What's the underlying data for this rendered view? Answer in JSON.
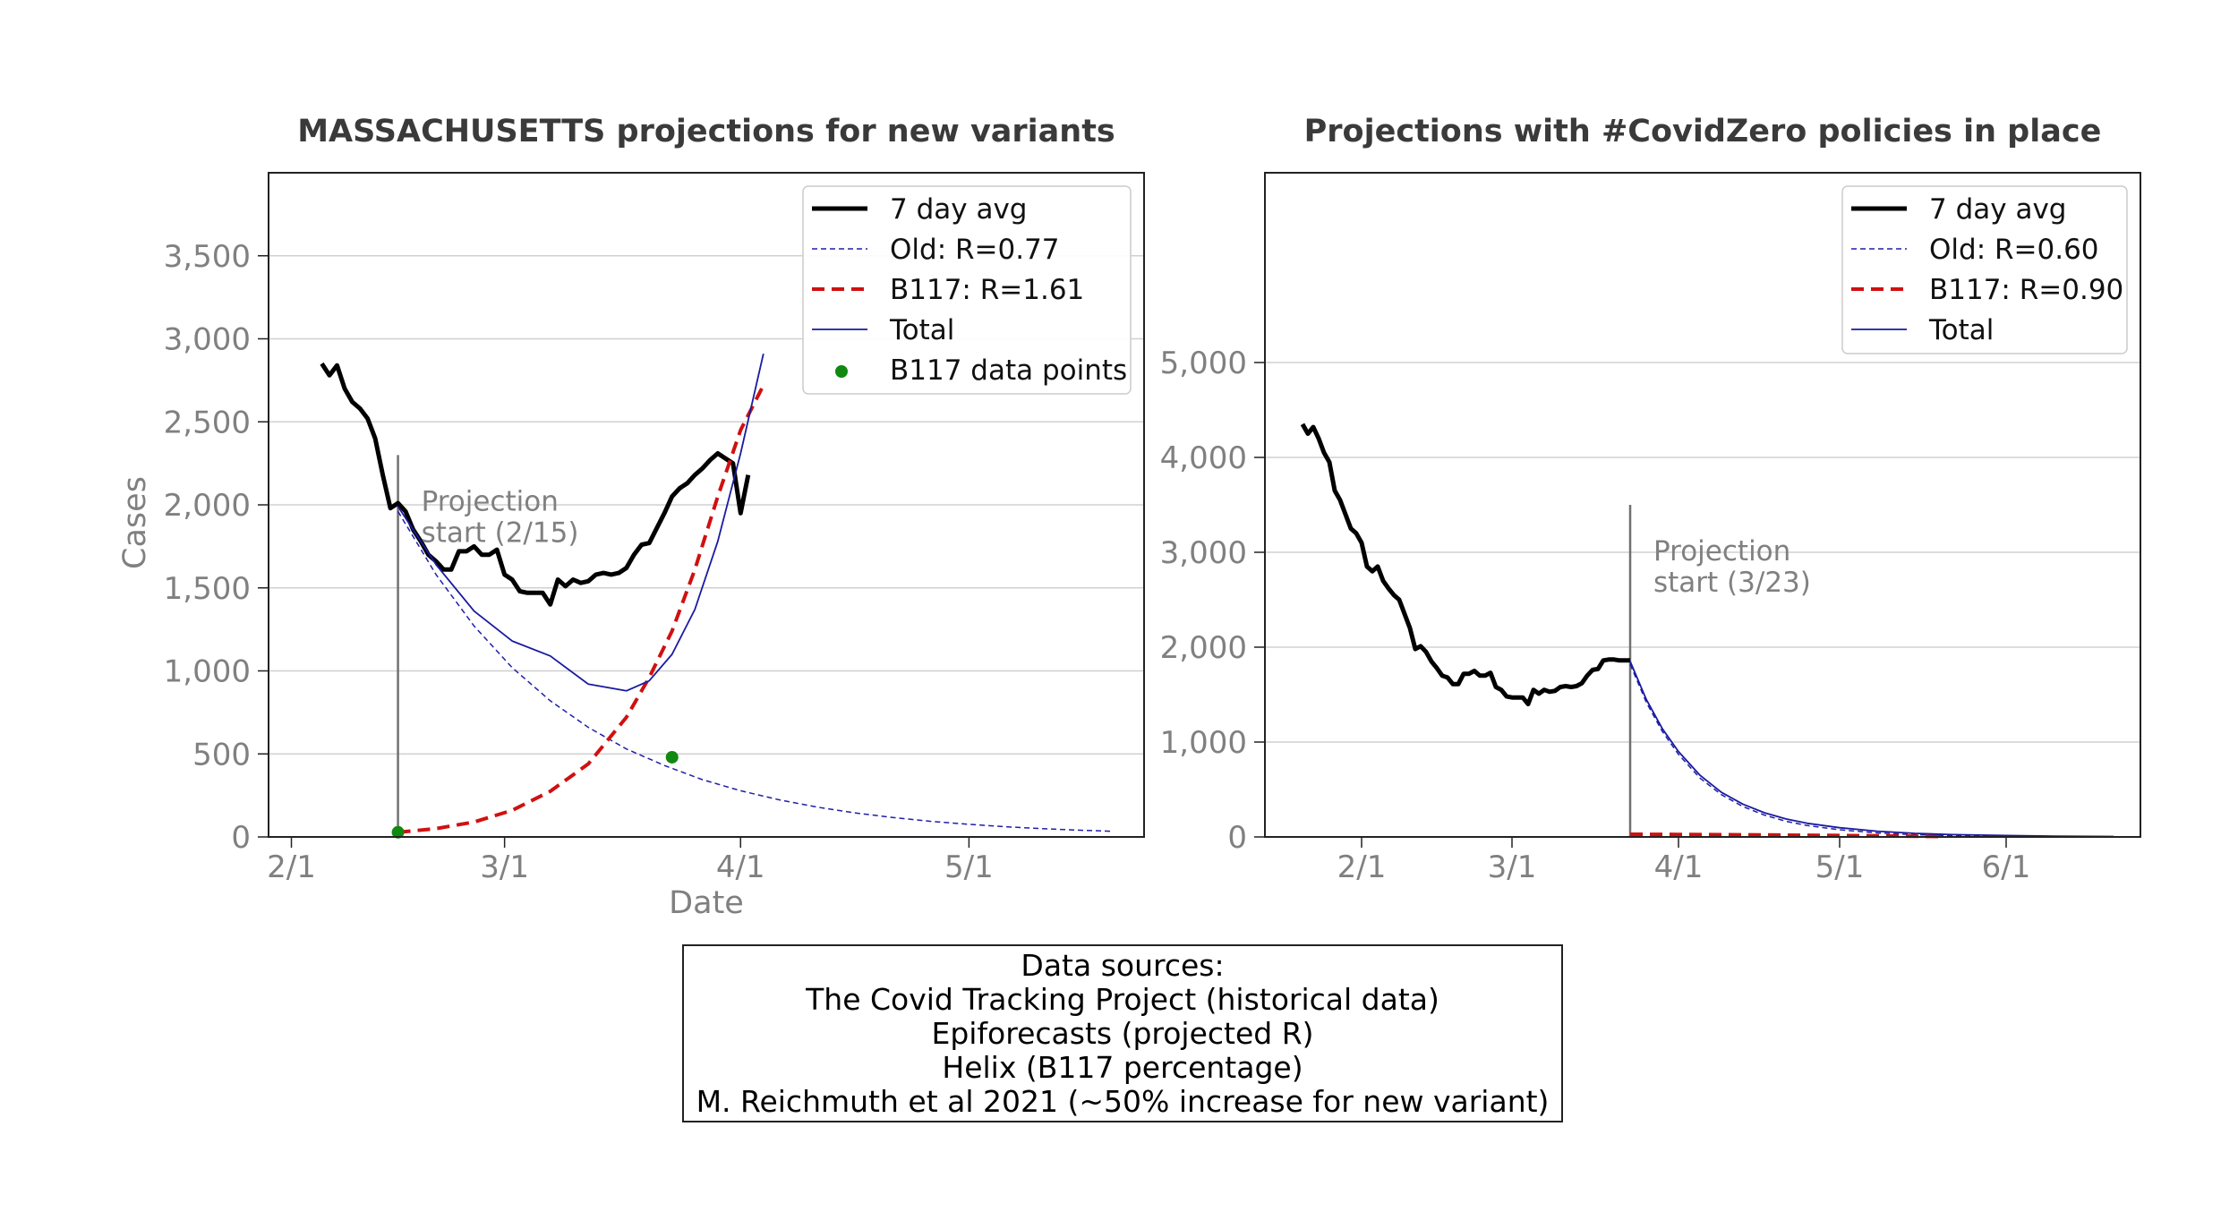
{
  "colors": {
    "avg": "#000000",
    "old": "#1f1fa8",
    "b117": "#d01010",
    "total": "#1a1aa0",
    "points": "#118811",
    "grid": "#d0d0d0",
    "annotation_line": "#707070"
  },
  "chart_data": [
    {
      "type": "line",
      "title": "MASSACHUSETTS projections for new variants",
      "xlabel": "Date",
      "ylabel": "Cases",
      "x_is_date": true,
      "xlim": [
        "2021-01-29",
        "2021-05-24"
      ],
      "ylim": [
        0,
        4000
      ],
      "xticks": [
        {
          "date": "2021-02-01",
          "label": "2/1"
        },
        {
          "date": "2021-03-01",
          "label": "3/1"
        },
        {
          "date": "2021-04-01",
          "label": "4/1"
        },
        {
          "date": "2021-05-01",
          "label": "5/1"
        }
      ],
      "yticks": [
        {
          "value": 0,
          "label": "0"
        },
        {
          "value": 500,
          "label": "500"
        },
        {
          "value": 1000,
          "label": "1,000"
        },
        {
          "value": 1500,
          "label": "1,500"
        },
        {
          "value": 2000,
          "label": "2,000"
        },
        {
          "value": 2500,
          "label": "2,500"
        },
        {
          "value": 3000,
          "label": "3,000"
        },
        {
          "value": 3500,
          "label": "3,500"
        }
      ],
      "grid": true,
      "legend_position": "upper right",
      "series": [
        {
          "name": "7 day avg",
          "style": "solid-thick",
          "color": "#000000",
          "x": [
            "2021-02-05",
            "2021-02-06",
            "2021-02-07",
            "2021-02-08",
            "2021-02-09",
            "2021-02-10",
            "2021-02-11",
            "2021-02-12",
            "2021-02-13",
            "2021-02-14",
            "2021-02-15",
            "2021-02-16",
            "2021-02-17",
            "2021-02-18",
            "2021-02-19",
            "2021-02-20",
            "2021-02-21",
            "2021-02-22",
            "2021-02-23",
            "2021-02-24",
            "2021-02-25",
            "2021-02-26",
            "2021-02-27",
            "2021-02-28",
            "2021-03-01",
            "2021-03-02",
            "2021-03-03",
            "2021-03-04",
            "2021-03-05",
            "2021-03-06",
            "2021-03-07",
            "2021-03-08",
            "2021-03-09",
            "2021-03-10",
            "2021-03-11",
            "2021-03-12",
            "2021-03-13",
            "2021-03-14",
            "2021-03-15",
            "2021-03-16",
            "2021-03-17",
            "2021-03-18",
            "2021-03-19",
            "2021-03-20",
            "2021-03-21",
            "2021-03-22",
            "2021-03-23",
            "2021-03-24",
            "2021-03-25",
            "2021-03-26",
            "2021-03-27",
            "2021-03-28",
            "2021-03-29",
            "2021-03-30",
            "2021-03-31",
            "2021-04-01",
            "2021-04-02",
            "2021-04-03",
            "2021-04-04",
            "2021-04-05"
          ],
          "y": [
            2850,
            2780,
            2840,
            2700,
            2620,
            2580,
            2520,
            2400,
            2180,
            1980,
            2010,
            1960,
            1850,
            1780,
            1700,
            1660,
            1610,
            1610,
            1720,
            1720,
            1750,
            1700,
            1700,
            1730,
            1580,
            1550,
            1480,
            1470,
            1470,
            1470,
            1400,
            1550,
            1510,
            1550,
            1530,
            1540,
            1580,
            1590,
            1580,
            1590,
            1620,
            1700,
            1760,
            1770,
            1860,
            1950,
            2050,
            2100,
            2130,
            2180,
            2220,
            2270,
            2310,
            2280,
            2250,
            1950,
            2180,
            null,
            null,
            null
          ]
        },
        {
          "name": "Old: R=0.77",
          "style": "dashed-thin",
          "color": "#1f1fa8",
          "x": [
            "2021-02-15",
            "2021-02-20",
            "2021-02-25",
            "2021-03-02",
            "2021-03-07",
            "2021-03-12",
            "2021-03-17",
            "2021-03-22",
            "2021-03-27",
            "2021-04-01",
            "2021-04-06",
            "2021-04-11",
            "2021-04-16",
            "2021-04-21",
            "2021-04-26",
            "2021-05-01",
            "2021-05-06",
            "2021-05-11",
            "2021-05-16",
            "2021-05-20"
          ],
          "y": [
            1960,
            1580,
            1270,
            1020,
            820,
            660,
            530,
            430,
            345,
            278,
            224,
            180,
            145,
            117,
            94,
            76,
            61,
            49,
            40,
            34
          ]
        },
        {
          "name": "B117: R=1.61",
          "style": "dashed-thick",
          "color": "#d01010",
          "x": [
            "2021-02-15",
            "2021-02-20",
            "2021-02-25",
            "2021-03-02",
            "2021-03-07",
            "2021-03-12",
            "2021-03-17",
            "2021-03-20",
            "2021-03-23",
            "2021-03-26",
            "2021-03-29",
            "2021-04-01",
            "2021-04-04"
          ],
          "y": [
            28,
            50,
            90,
            160,
            275,
            440,
            720,
            960,
            1240,
            1610,
            2050,
            2450,
            2720
          ]
        },
        {
          "name": "Total",
          "style": "solid-thin",
          "color": "#1a1aa0",
          "x": [
            "2021-02-15",
            "2021-02-20",
            "2021-02-25",
            "2021-03-02",
            "2021-03-07",
            "2021-03-12",
            "2021-03-17",
            "2021-03-20",
            "2021-03-23",
            "2021-03-26",
            "2021-03-29",
            "2021-04-01",
            "2021-04-04"
          ],
          "y": [
            1990,
            1640,
            1360,
            1180,
            1090,
            920,
            880,
            940,
            1100,
            1370,
            1780,
            2310,
            2910
          ]
        },
        {
          "name": "B117 data points",
          "style": "points",
          "color": "#118811",
          "x": [
            "2021-02-15",
            "2021-03-23"
          ],
          "y": [
            28,
            480
          ]
        }
      ],
      "annotation": {
        "date": "2021-02-15",
        "y_top": 2300,
        "text_lines": [
          "Projection",
          "start (2/15)"
        ]
      }
    },
    {
      "type": "line",
      "title": "Projections with #CovidZero policies in place",
      "xlabel": "",
      "ylabel": "",
      "x_is_date": true,
      "xlim": [
        "2021-01-14",
        "2021-06-26"
      ],
      "ylim": [
        0,
        7000
      ],
      "xticks": [
        {
          "date": "2021-02-01",
          "label": "2/1"
        },
        {
          "date": "2021-03-01",
          "label": "3/1"
        },
        {
          "date": "2021-04-01",
          "label": "4/1"
        },
        {
          "date": "2021-05-01",
          "label": "5/1"
        },
        {
          "date": "2021-06-01",
          "label": "6/1"
        }
      ],
      "yticks": [
        {
          "value": 0,
          "label": "0"
        },
        {
          "value": 1000,
          "label": "1,000"
        },
        {
          "value": 2000,
          "label": "2,000"
        },
        {
          "value": 3000,
          "label": "3,000"
        },
        {
          "value": 4000,
          "label": "4,000"
        },
        {
          "value": 5000,
          "label": "5,000"
        }
      ],
      "grid": true,
      "legend_position": "upper right",
      "series": [
        {
          "name": "7 day avg",
          "style": "solid-thick",
          "color": "#000000",
          "x": [
            "2021-01-21",
            "2021-01-22",
            "2021-01-23",
            "2021-01-24",
            "2021-01-25",
            "2021-01-26",
            "2021-01-27",
            "2021-01-28",
            "2021-01-29",
            "2021-01-30",
            "2021-01-31",
            "2021-02-01",
            "2021-02-02",
            "2021-02-03",
            "2021-02-04",
            "2021-02-05",
            "2021-02-06",
            "2021-02-07",
            "2021-02-08",
            "2021-02-09",
            "2021-02-10",
            "2021-02-11",
            "2021-02-12",
            "2021-02-13",
            "2021-02-14",
            "2021-02-15",
            "2021-02-16",
            "2021-02-17",
            "2021-02-18",
            "2021-02-19",
            "2021-02-20",
            "2021-02-21",
            "2021-02-22",
            "2021-02-23",
            "2021-02-24",
            "2021-02-25",
            "2021-02-26",
            "2021-02-27",
            "2021-02-28",
            "2021-03-01",
            "2021-03-02",
            "2021-03-03",
            "2021-03-04",
            "2021-03-05",
            "2021-03-06",
            "2021-03-07",
            "2021-03-08",
            "2021-03-09",
            "2021-03-10",
            "2021-03-11",
            "2021-03-12",
            "2021-03-13",
            "2021-03-14",
            "2021-03-15",
            "2021-03-16",
            "2021-03-17",
            "2021-03-18",
            "2021-03-19",
            "2021-03-20",
            "2021-03-21",
            "2021-03-22",
            "2021-03-23"
          ],
          "y": [
            4350,
            4250,
            4320,
            4200,
            4050,
            3950,
            3650,
            3550,
            3400,
            3250,
            3200,
            3100,
            2850,
            2800,
            2850,
            2700,
            2620,
            2550,
            2500,
            2350,
            2200,
            1980,
            2010,
            1950,
            1850,
            1780,
            1700,
            1680,
            1610,
            1610,
            1720,
            1720,
            1750,
            1700,
            1700,
            1730,
            1580,
            1550,
            1480,
            1470,
            1470,
            1470,
            1400,
            1550,
            1510,
            1550,
            1530,
            1540,
            1580,
            1590,
            1580,
            1590,
            1620,
            1700,
            1760,
            1770,
            1860,
            1870,
            1870,
            1860,
            1860,
            1860
          ]
        },
        {
          "name": "Old: R=0.60",
          "style": "dashed-thin",
          "color": "#1f1fa8",
          "x": [
            "2021-03-23",
            "2021-03-26",
            "2021-03-29",
            "2021-04-01",
            "2021-04-05",
            "2021-04-09",
            "2021-04-13",
            "2021-04-17",
            "2021-04-21",
            "2021-04-25",
            "2021-05-01",
            "2021-05-08",
            "2021-05-15",
            "2021-05-22",
            "2021-06-01",
            "2021-06-10",
            "2021-06-21"
          ],
          "y": [
            1820,
            1420,
            1110,
            870,
            620,
            445,
            320,
            230,
            165,
            120,
            75,
            42,
            24,
            14,
            7,
            3,
            2
          ]
        },
        {
          "name": "B117: R=0.90",
          "style": "dashed-thick",
          "color": "#d01010",
          "x": [
            "2021-03-23",
            "2021-04-01",
            "2021-04-10",
            "2021-04-20",
            "2021-05-01",
            "2021-05-10",
            "2021-05-20"
          ],
          "y": [
            28,
            26,
            24,
            20,
            15,
            10,
            5
          ]
        },
        {
          "name": "Total",
          "style": "solid-thin",
          "color": "#1a1aa0",
          "x": [
            "2021-03-23",
            "2021-03-26",
            "2021-03-29",
            "2021-04-01",
            "2021-04-05",
            "2021-04-09",
            "2021-04-13",
            "2021-04-17",
            "2021-04-21",
            "2021-04-25",
            "2021-05-01",
            "2021-05-08",
            "2021-05-15",
            "2021-05-22",
            "2021-06-01",
            "2021-06-10",
            "2021-06-21"
          ],
          "y": [
            1850,
            1450,
            1140,
            900,
            650,
            470,
            345,
            255,
            190,
            143,
            97,
            60,
            38,
            25,
            15,
            8,
            5
          ]
        }
      ],
      "annotation": {
        "date": "2021-03-23",
        "y_top": 3500,
        "text_lines": [
          "Projection",
          "start (3/23)"
        ]
      }
    }
  ],
  "sources": {
    "lines": [
      "Data sources:",
      "The Covid Tracking Project (historical data)",
      "Epiforecasts (projected R)",
      "Helix (B117 percentage)",
      "M. Reichmuth et al 2021 (~50% increase for new variant)"
    ]
  }
}
